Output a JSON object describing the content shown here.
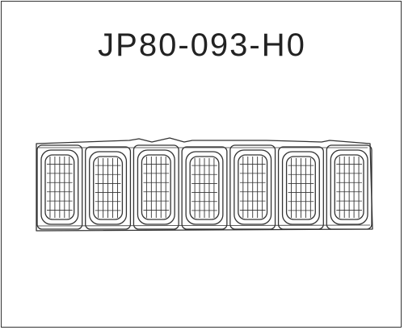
{
  "diagram": {
    "part_number": "JP80-093-H0",
    "line_color": "#333333",
    "background": "#ffffff",
    "slot_count": 7,
    "depicts": "front-grille-insert-set"
  }
}
